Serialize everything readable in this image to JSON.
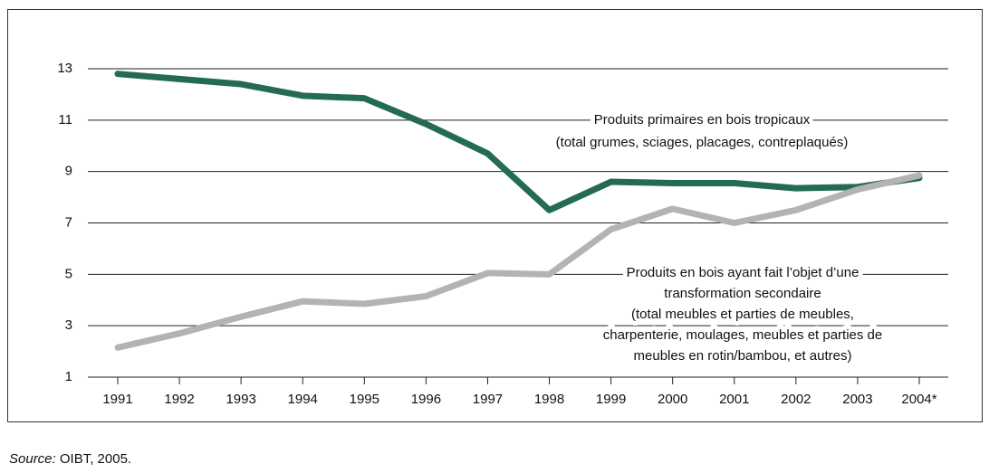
{
  "chart_data": {
    "type": "line",
    "categories": [
      "1991",
      "1992",
      "1993",
      "1994",
      "1995",
      "1996",
      "1997",
      "1998",
      "1999",
      "2000",
      "2001",
      "2002",
      "2003",
      "2004*"
    ],
    "series": [
      {
        "color": "#236b57",
        "values": [
          12.8,
          12.6,
          12.4,
          11.95,
          11.85,
          10.85,
          9.7,
          7.5,
          8.6,
          8.55,
          8.55,
          8.35,
          8.4,
          8.75
        ]
      },
      {
        "color": "#b3b3b3",
        "values": [
          2.15,
          2.7,
          3.35,
          3.95,
          3.85,
          4.15,
          5.05,
          5.0,
          6.75,
          7.55,
          7.0,
          7.5,
          8.3,
          8.85
        ]
      }
    ],
    "annotations": [
      {
        "lines": [
          "Produits primaires en bois tropicaux",
          "(total grumes, sciages, placages, contreplaqués)"
        ]
      },
      {
        "lines": [
          "Produits en bois ayant fait l’objet d’une",
          "transformation secondaire",
          "(total meubles et parties de meubles,",
          "charpenterie, moulages, meubles et parties de",
          "meubles en rotin/bambou, et autres)"
        ]
      }
    ],
    "ylim": [
      1,
      13
    ],
    "yticks": [
      1,
      3,
      5,
      7,
      9,
      11,
      13
    ],
    "grid": true,
    "source_label": "Source:",
    "source_text": " OIBT, 2005."
  }
}
